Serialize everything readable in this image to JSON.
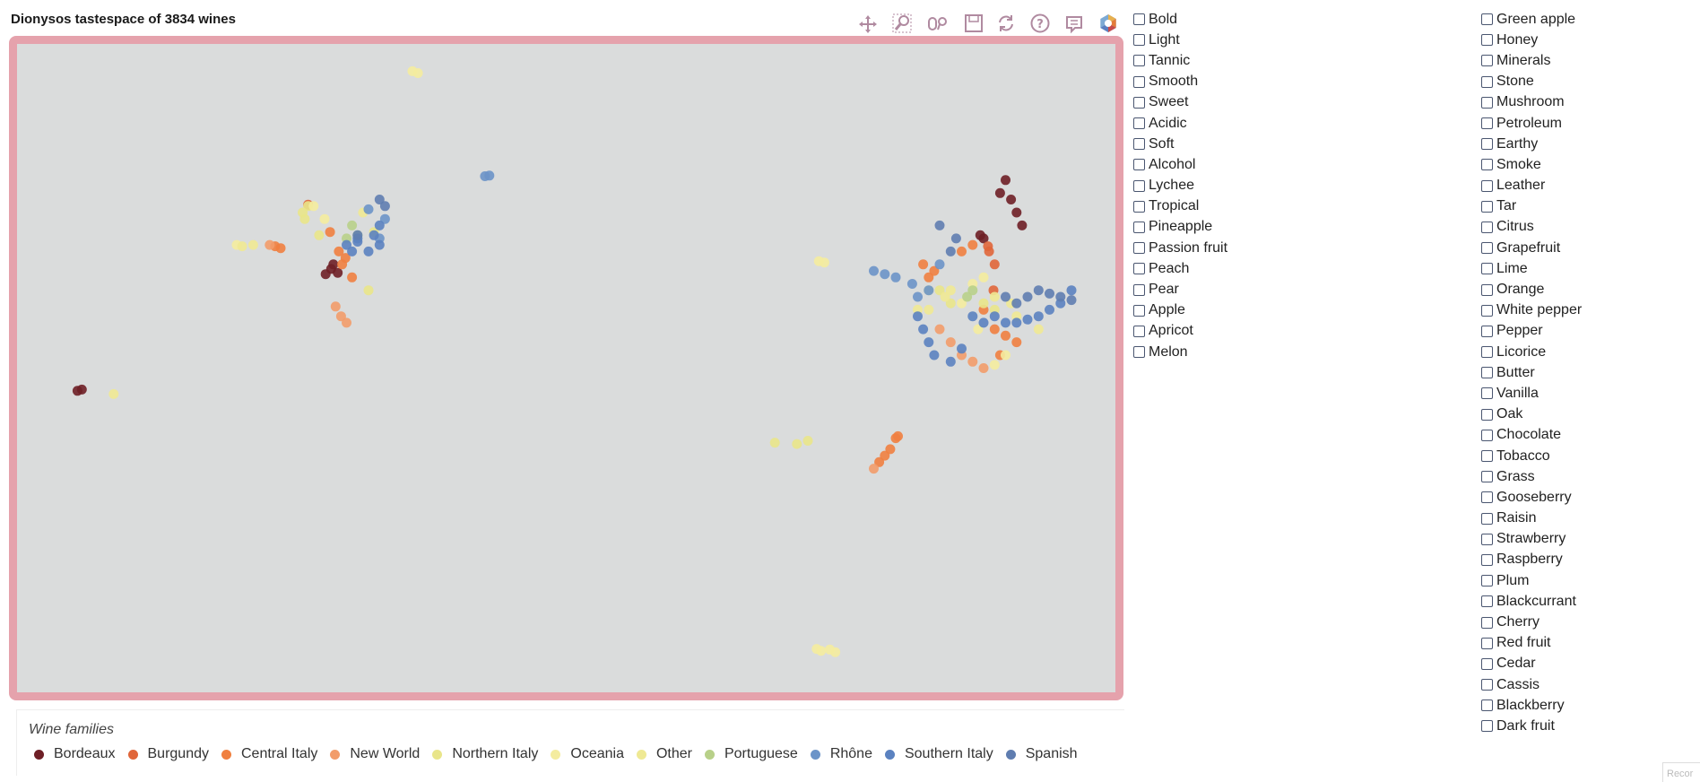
{
  "title": "Dionysos tastespace of 3834 wines",
  "toolbar": {
    "tools": [
      {
        "name": "pan-tool-icon",
        "icon": "pan"
      },
      {
        "name": "box-zoom-tool-icon",
        "icon": "box-zoom"
      },
      {
        "name": "wheel-zoom-tool-icon",
        "icon": "wheel-zoom"
      },
      {
        "name": "save-tool-icon",
        "icon": "save"
      },
      {
        "name": "reset-tool-icon",
        "icon": "reset"
      },
      {
        "name": "help-tool-icon",
        "icon": "help"
      },
      {
        "name": "hover-tool-icon",
        "icon": "hover"
      },
      {
        "name": "bokeh-logo-icon",
        "icon": "bokeh-logo"
      }
    ]
  },
  "colors": {
    "plot_background": "#dadcdc",
    "plot_border": "#e5a2ac",
    "toolbar_icon": "#b08aa0",
    "active_underline": "#8fb1e6"
  },
  "chart_data": {
    "type": "scatter",
    "title": "Dionysos tastespace of 3834 wines",
    "legend_title": "Wine families",
    "legend_placement": "bottom",
    "grid": false,
    "xlim": [
      0,
      1000
    ],
    "ylim": [
      0,
      1000
    ],
    "series": [
      {
        "name": "Bordeaux",
        "color": "#6e1f26",
        "points": [
          [
            55,
            465
          ],
          [
            59,
            467
          ],
          [
            900,
            790
          ],
          [
            905,
            760
          ],
          [
            910,
            740
          ],
          [
            915,
            720
          ],
          [
            895,
            770
          ],
          [
            880,
            700
          ],
          [
            877,
            705
          ],
          [
            286,
            653
          ],
          [
            281,
            645
          ],
          [
            288,
            660
          ],
          [
            292,
            647
          ]
        ]
      },
      {
        "name": "Burgundy",
        "color": "#e0663a",
        "points": [
          [
            265,
            752
          ],
          [
            885,
            680
          ],
          [
            884,
            688
          ],
          [
            889,
            620
          ],
          [
            890,
            660
          ]
        ]
      },
      {
        "name": "Central Italy",
        "color": "#f08040",
        "points": [
          [
            825,
            660
          ],
          [
            830,
            640
          ],
          [
            835,
            650
          ],
          [
            860,
            680
          ],
          [
            870,
            690
          ],
          [
            880,
            590
          ],
          [
            890,
            560
          ],
          [
            900,
            550
          ],
          [
            910,
            540
          ],
          [
            895,
            520
          ],
          [
            293,
            680
          ],
          [
            296,
            660
          ],
          [
            299,
            670
          ],
          [
            305,
            640
          ],
          [
            285,
            710
          ],
          [
            235,
            688
          ],
          [
            240,
            685
          ],
          [
            785,
            355
          ],
          [
            790,
            365
          ],
          [
            795,
            375
          ],
          [
            800,
            392
          ],
          [
            802,
            395
          ]
        ]
      },
      {
        "name": "New World",
        "color": "#f29c6a",
        "points": [
          [
            840,
            560
          ],
          [
            850,
            540
          ],
          [
            860,
            520
          ],
          [
            870,
            510
          ],
          [
            880,
            500
          ],
          [
            290,
            595
          ],
          [
            295,
            580
          ],
          [
            300,
            570
          ],
          [
            230,
            690
          ],
          [
            780,
            345
          ]
        ]
      },
      {
        "name": "Northern Italy",
        "color": "#e9e58a",
        "points": [
          [
            830,
            620
          ],
          [
            840,
            620
          ],
          [
            850,
            600
          ],
          [
            880,
            600
          ],
          [
            890,
            590
          ],
          [
            260,
            740
          ],
          [
            262,
            730
          ],
          [
            265,
            750
          ],
          [
            320,
            620
          ],
          [
            325,
            710
          ],
          [
            275,
            705
          ],
          [
            710,
            383
          ],
          [
            720,
            388
          ],
          [
            690,
            385
          ]
        ]
      },
      {
        "name": "Oceania",
        "color": "#f4ec9f",
        "points": [
          [
            870,
            630
          ],
          [
            880,
            640
          ],
          [
            860,
            600
          ],
          [
            875,
            560
          ],
          [
            900,
            520
          ],
          [
            890,
            505
          ],
          [
            360,
            958
          ],
          [
            365,
            955
          ],
          [
            270,
            750
          ],
          [
            280,
            730
          ],
          [
            200,
            690
          ],
          [
            730,
            665
          ],
          [
            735,
            663
          ],
          [
            728,
            67
          ],
          [
            732,
            64
          ],
          [
            745,
            62
          ],
          [
            740,
            66
          ]
        ]
      },
      {
        "name": "Other",
        "color": "#efe994",
        "points": [
          [
            850,
            620
          ],
          [
            845,
            610
          ],
          [
            890,
            610
          ],
          [
            905,
            600
          ],
          [
            910,
            580
          ],
          [
            930,
            560
          ],
          [
            820,
            590
          ],
          [
            830,
            590
          ],
          [
            215,
            690
          ],
          [
            205,
            688
          ],
          [
            315,
            740
          ],
          [
            88,
            460
          ]
        ]
      },
      {
        "name": "Portuguese",
        "color": "#b8d089",
        "points": [
          [
            870,
            620
          ],
          [
            865,
            610
          ],
          [
            300,
            700
          ],
          [
            310,
            705
          ],
          [
            305,
            720
          ]
        ]
      },
      {
        "name": "Rhône",
        "color": "#6c94c8",
        "points": [
          [
            780,
            650
          ],
          [
            790,
            645
          ],
          [
            800,
            640
          ],
          [
            815,
            630
          ],
          [
            830,
            620
          ],
          [
            820,
            610
          ],
          [
            840,
            660
          ],
          [
            426,
            796
          ],
          [
            430,
            797
          ],
          [
            330,
            700
          ],
          [
            335,
            730
          ],
          [
            320,
            745
          ]
        ]
      },
      {
        "name": "Southern Italy",
        "color": "#5b82c0",
        "points": [
          [
            820,
            580
          ],
          [
            825,
            560
          ],
          [
            830,
            540
          ],
          [
            835,
            520
          ],
          [
            850,
            510
          ],
          [
            860,
            530
          ],
          [
            870,
            580
          ],
          [
            880,
            570
          ],
          [
            890,
            580
          ],
          [
            900,
            570
          ],
          [
            910,
            570
          ],
          [
            920,
            575
          ],
          [
            930,
            580
          ],
          [
            940,
            590
          ],
          [
            950,
            600
          ],
          [
            960,
            620
          ],
          [
            330,
            690
          ],
          [
            320,
            680
          ],
          [
            330,
            720
          ],
          [
            310,
            695
          ],
          [
            300,
            690
          ],
          [
            305,
            680
          ],
          [
            325,
            705
          ],
          [
            310,
            700
          ]
        ]
      },
      {
        "name": "Spanish",
        "color": "#5f7db0",
        "points": [
          [
            900,
            610
          ],
          [
            910,
            600
          ],
          [
            920,
            610
          ],
          [
            930,
            620
          ],
          [
            940,
            615
          ],
          [
            950,
            610
          ],
          [
            960,
            605
          ],
          [
            850,
            680
          ],
          [
            855,
            700
          ],
          [
            840,
            720
          ],
          [
            330,
            760
          ],
          [
            335,
            750
          ],
          [
            310,
            705
          ]
        ]
      }
    ]
  },
  "filters": {
    "column1": [
      "Bold",
      "Light",
      "Tannic",
      "Smooth",
      "Sweet",
      "Acidic",
      "Soft",
      "Alcohol",
      "Lychee",
      "Tropical",
      "Pineapple",
      "Passion fruit",
      "Peach",
      "Pear",
      "Apple",
      "Apricot",
      "Melon"
    ],
    "column2": [
      "Green apple",
      "Honey",
      "Minerals",
      "Stone",
      "Mushroom",
      "Petroleum",
      "Earthy",
      "Smoke",
      "Leather",
      "Tar",
      "Citrus",
      "Grapefruit",
      "Lime",
      "Orange",
      "White pepper",
      "Pepper",
      "Licorice",
      "Butter",
      "Vanilla",
      "Oak",
      "Chocolate",
      "Tobacco",
      "Grass",
      "Gooseberry",
      "Raisin",
      "Strawberry",
      "Raspberry",
      "Plum",
      "Blackcurrant",
      "Cherry",
      "Red fruit",
      "Cedar",
      "Cassis",
      "Blackberry",
      "Dark fruit"
    ]
  },
  "corner_label": "Recor"
}
